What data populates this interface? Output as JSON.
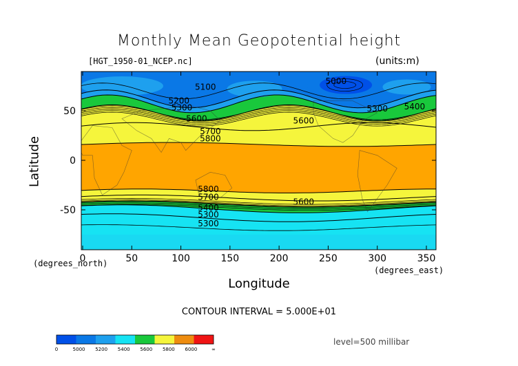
{
  "chart_data": {
    "type": "heatmap",
    "title": "Monthly Mean Geopotential height",
    "subtitle": "[HGT_1950-01_NCEP.nc]",
    "units": "(units:m)",
    "xlabel": "Longitude",
    "ylabel": "Latitude",
    "x_unit_note": "(degrees_east)",
    "y_unit_note": "(degrees_north)",
    "xlim": [
      0,
      360
    ],
    "ylim": [
      -90,
      90
    ],
    "x_ticks": [
      0,
      50,
      100,
      150,
      200,
      250,
      300,
      350
    ],
    "y_ticks": [
      50,
      0,
      -50
    ],
    "contour_interval_text": "CONTOUR INTERVAL = 5.000E+01",
    "level_text": "level=500 millibar",
    "contour_labels": [
      {
        "text": "5100",
        "lon": 125,
        "lat": 74
      },
      {
        "text": "5200",
        "lon": 98,
        "lat": 60
      },
      {
        "text": "5300",
        "lon": 101,
        "lat": 53
      },
      {
        "text": "5600",
        "lon": 116,
        "lat": 42
      },
      {
        "text": "5700",
        "lon": 130,
        "lat": 29
      },
      {
        "text": "5800",
        "lon": 130,
        "lat": 22
      },
      {
        "text": "5000",
        "lon": 258,
        "lat": 80
      },
      {
        "text": "5600",
        "lon": 225,
        "lat": 40
      },
      {
        "text": "5300",
        "lon": 300,
        "lat": 52
      },
      {
        "text": "5400",
        "lon": 338,
        "lat": 54
      },
      {
        "text": "5800",
        "lon": 128,
        "lat": -29
      },
      {
        "text": "5700",
        "lon": 128,
        "lat": -37
      },
      {
        "text": "5600",
        "lon": 225,
        "lat": -42
      },
      {
        "text": "5400",
        "lon": 128,
        "lat": -48
      },
      {
        "text": "5300",
        "lon": 128,
        "lat": -55
      },
      {
        "text": "5300",
        "lon": 128,
        "lat": -64
      }
    ],
    "colorbar": {
      "labels": [
        "0",
        "5000",
        "5200",
        "5400",
        "5600",
        "5800",
        "6000",
        "∞"
      ],
      "colors": [
        "#0050e8",
        "#0a78e6",
        "#1ea0ee",
        "#16e3f3",
        "#19c83c",
        "#f5f53c",
        "#ee8c0f",
        "#f01414"
      ]
    },
    "bands": [
      {
        "name": "5000-5100",
        "color": "#0050e8"
      },
      {
        "name": "5100-5200",
        "color": "#0a78e6"
      },
      {
        "name": "5200-5300",
        "color": "#1ea0ee"
      },
      {
        "name": "5300-5400",
        "color": "#16e3f3"
      },
      {
        "name": "5400-5600",
        "color": "#19c83c"
      },
      {
        "name": "5600-5800",
        "color": "#f5f53c"
      },
      {
        "name": "5800-5900",
        "color": "#ffa500"
      }
    ]
  }
}
